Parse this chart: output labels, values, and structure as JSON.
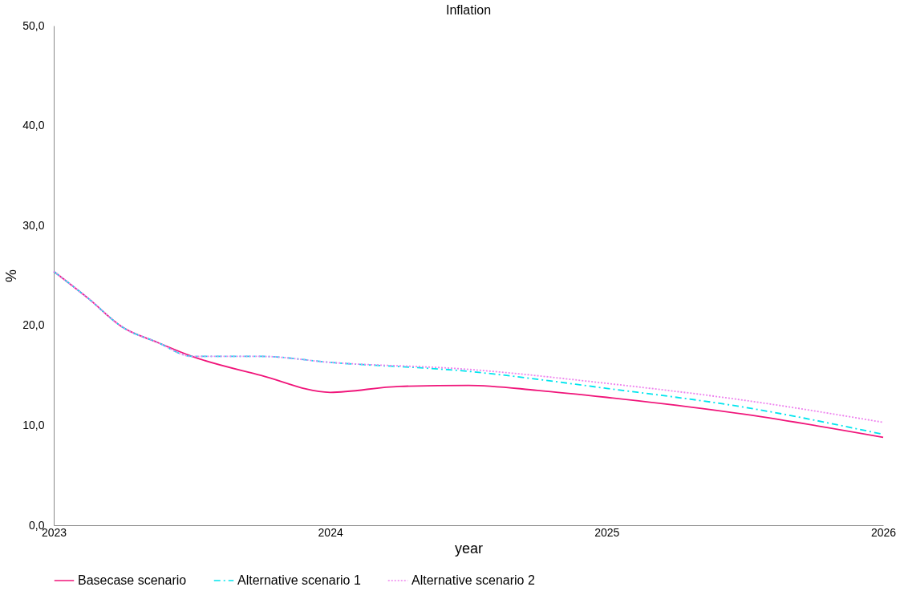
{
  "chart_data": {
    "type": "line",
    "title": "Inflation",
    "xlabel": "year",
    "ylabel": "%",
    "xlim": [
      2023,
      2026
    ],
    "xticks": [
      2023,
      2024,
      2025,
      2026
    ],
    "ylim": [
      0,
      50
    ],
    "yticks": [
      {
        "value": 0,
        "label": "0,0"
      },
      {
        "value": 10,
        "label": "10,0"
      },
      {
        "value": 20,
        "label": "20,0"
      },
      {
        "value": 30,
        "label": "30,0"
      },
      {
        "value": 40,
        "label": "40,0"
      },
      {
        "value": 50,
        "label": "50,0"
      }
    ],
    "grid": false,
    "legend": "bottom",
    "marker": "none",
    "series": [
      {
        "name": "Basecase scenario",
        "color": "#f0157a",
        "line_style": "solid",
        "x": [
          2023,
          2023.125,
          2023.25,
          2023.375,
          2023.5,
          2023.75,
          2024,
          2024.25,
          2024.5,
          2024.75,
          2025,
          2025.5,
          2026
        ],
        "values": [
          25.4,
          22.7,
          19.8,
          18.3,
          16.9,
          15.0,
          13.3,
          13.9,
          14.0,
          13.5,
          12.8,
          11.1,
          8.8
        ]
      },
      {
        "name": "Alternative scenario 1",
        "color": "#00e5ee",
        "line_style": "dashed",
        "x": [
          2023,
          2023.125,
          2023.25,
          2023.375,
          2023.5,
          2023.75,
          2024,
          2024.5,
          2025,
          2025.5,
          2026
        ],
        "values": [
          25.4,
          22.7,
          19.8,
          18.3,
          16.9,
          16.9,
          16.3,
          15.4,
          13.7,
          11.8,
          9.1
        ]
      },
      {
        "name": "Alternative scenario 2",
        "color": "#ee82ee",
        "line_style": "dotted",
        "x": [
          2023,
          2023.125,
          2023.25,
          2023.375,
          2023.5,
          2023.75,
          2024,
          2024.5,
          2025,
          2025.5,
          2026
        ],
        "values": [
          25.4,
          22.7,
          19.8,
          18.3,
          16.9,
          16.9,
          16.3,
          15.6,
          14.2,
          12.5,
          10.3
        ]
      }
    ]
  }
}
